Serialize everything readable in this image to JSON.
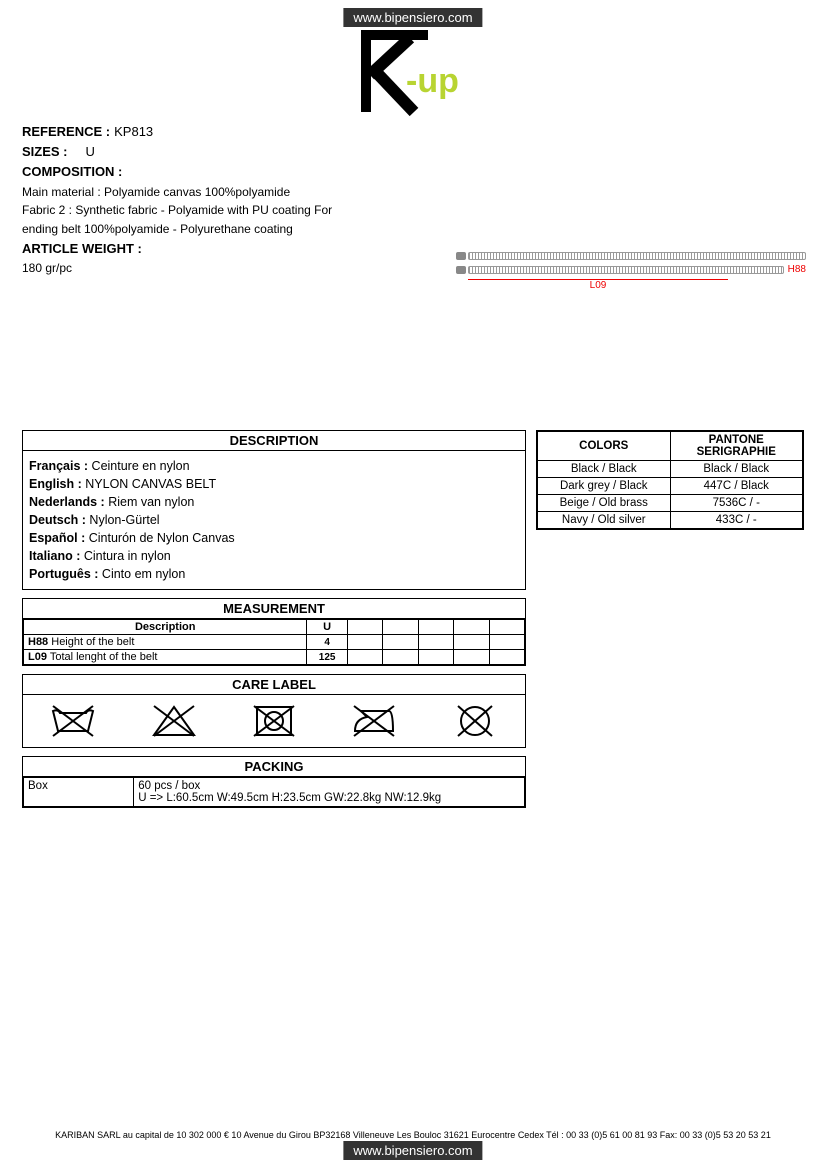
{
  "url_badge": "www.bipensiero.com",
  "logo": {
    "brand_main": "K",
    "brand_sub": "-up",
    "accent_color": "#b8d432"
  },
  "header": {
    "reference_label": "REFERENCE :",
    "reference_value": "KP813",
    "sizes_label": "SIZES :",
    "sizes_value": "U",
    "composition_label": "COMPOSITION :",
    "composition_line1": "Main material : Polyamide canvas  100%polyamide",
    "composition_line2": "Fabric 2 : Synthetic fabric - Polyamide with PU coating For",
    "composition_line3": "ending belt 100%polyamide - Polyurethane coating",
    "weight_label": "ARTICLE WEIGHT :",
    "weight_value": "180 gr/pc"
  },
  "diagram": {
    "h88": "H88",
    "l09": "L09"
  },
  "description": {
    "title": "DESCRIPTION",
    "lines": [
      {
        "lang": "Français :",
        "text": " Ceinture en nylon"
      },
      {
        "lang": "English :",
        "text": " NYLON CANVAS BELT"
      },
      {
        "lang": "Nederlands :",
        "text": " Riem van nylon"
      },
      {
        "lang": "Deutsch :",
        "text": " Nylon-Gürtel"
      },
      {
        "lang": "Español :",
        "text": " Cinturón de Nylon Canvas"
      },
      {
        "lang": "Italiano :",
        "text": " Cintura in nylon"
      },
      {
        "lang": "Português :",
        "text": " Cinto em nylon"
      }
    ]
  },
  "colors": {
    "col1": "COLORS",
    "col2": "PANTONE SERIGRAPHIE",
    "rows": [
      {
        "c": "Black / Black",
        "p": "Black / Black"
      },
      {
        "c": "Dark grey / Black",
        "p": "447C / Black"
      },
      {
        "c": "Beige / Old brass",
        "p": "7536C / -"
      },
      {
        "c": "Navy / Old silver",
        "p": "433C / -"
      }
    ]
  },
  "measurement": {
    "title": "MEASUREMENT",
    "desc_header": "Description",
    "u_header": "U",
    "rows": [
      {
        "code": "H88",
        "desc": " Height of the belt",
        "u": "4"
      },
      {
        "code": "L09",
        "desc": " Total lenght of the belt",
        "u": "125"
      }
    ]
  },
  "care": {
    "title": "CARE LABEL"
  },
  "packing": {
    "title": "PACKING",
    "c1": "Box",
    "line1": "60 pcs / box",
    "line2": "U => L:60.5cm W:49.5cm H:23.5cm GW:22.8kg NW:12.9kg"
  },
  "footer": "KARIBAN SARL au capital de 10 302 000 € 10 Avenue du Girou BP32168 Villeneuve Les Bouloc 31621 Eurocentre Cedex Tél : 00 33 (0)5 61 00 81 93 Fax: 00 33 (0)5 53 20 53 21"
}
